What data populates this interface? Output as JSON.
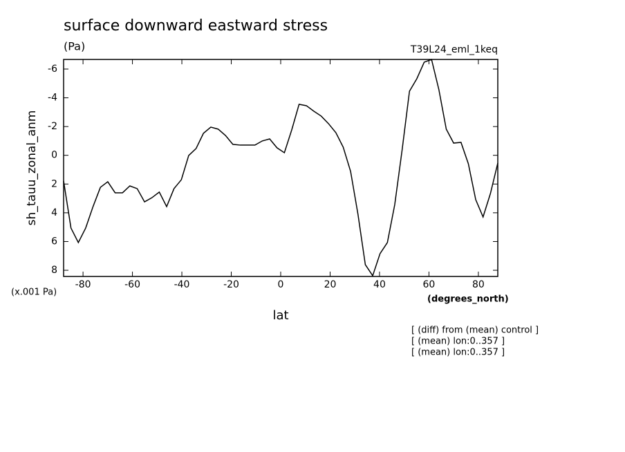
{
  "chart_data": {
    "type": "line",
    "title": "surface downward eastward stress",
    "subtitle": "(Pa)",
    "experiment": "T39L24_eml_1keq",
    "y_label": "sh_tauu_zonal_anm",
    "y_unit": "(x.001 Pa)",
    "x_unit": "(degrees_north)",
    "x_label": "lat",
    "notes": [
      "[ (diff) from (mean) control ]",
      "[ (mean) lon:0..357 ]",
      "[ (mean) lon:0..357 ]"
    ],
    "x": [
      -87.86,
      -84.88,
      -81.9,
      -78.93,
      -75.95,
      -72.97,
      -69.99,
      -67.01,
      -64.03,
      -61.05,
      -58.08,
      -55.1,
      -52.12,
      -49.14,
      -46.16,
      -43.18,
      -40.21,
      -37.23,
      -34.25,
      -31.27,
      -28.29,
      -25.31,
      -22.34,
      -19.36,
      -16.38,
      -13.4,
      -10.42,
      -7.44,
      -4.47,
      -1.49,
      1.49,
      4.47,
      7.44,
      10.42,
      13.4,
      16.38,
      19.36,
      22.34,
      25.31,
      28.29,
      31.27,
      34.25,
      37.23,
      40.21,
      43.18,
      46.16,
      49.14,
      52.12,
      55.1,
      58.08,
      61.05,
      64.03,
      67.01,
      69.99,
      72.97,
      75.95,
      78.93,
      81.9,
      84.88,
      87.86
    ],
    "series": [
      {
        "name": "sh_tauu_zonal_anm",
        "color": "#000000",
        "values": [
          1.79,
          5.06,
          6.07,
          5.06,
          3.57,
          2.23,
          1.84,
          2.61,
          2.61,
          2.13,
          2.32,
          3.24,
          2.95,
          2.56,
          3.57,
          2.32,
          1.7,
          0.01,
          -0.47,
          -1.53,
          -1.96,
          -1.82,
          -1.38,
          -0.76,
          -0.71,
          -0.71,
          -0.71,
          -1.0,
          -1.14,
          -0.52,
          -0.18,
          -1.77,
          -3.55,
          -3.45,
          -3.07,
          -2.73,
          -2.2,
          -1.57,
          -0.56,
          1.12,
          4.1,
          7.61,
          8.38,
          6.84,
          6.07,
          3.43,
          -0.37,
          -4.46,
          -5.33,
          -6.48,
          -6.67,
          -4.56,
          -1.82,
          -0.85,
          -0.9,
          0.59,
          3.09,
          4.29,
          2.66,
          0.54
        ]
      }
    ],
    "xlim": [
      -87.86,
      87.86
    ],
    "xticks": [
      -80,
      -60,
      -40,
      -20,
      0,
      20,
      40,
      60,
      80
    ],
    "ylim": [
      8.43,
      -6.67
    ],
    "yticks": [
      -6,
      -4,
      -2,
      0,
      2,
      4,
      6,
      8
    ],
    "grid": false
  }
}
